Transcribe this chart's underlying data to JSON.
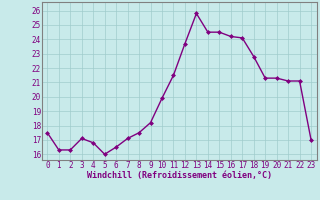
{
  "x": [
    0,
    1,
    2,
    3,
    4,
    5,
    6,
    7,
    8,
    9,
    10,
    11,
    12,
    13,
    14,
    15,
    16,
    17,
    18,
    19,
    20,
    21,
    22,
    23
  ],
  "y": [
    17.5,
    16.3,
    16.3,
    17.1,
    16.8,
    16.0,
    16.5,
    17.1,
    17.5,
    18.2,
    19.9,
    21.5,
    23.7,
    25.8,
    24.5,
    24.5,
    24.2,
    24.1,
    22.8,
    21.3,
    21.3,
    21.1,
    21.1,
    17.0
  ],
  "line_color": "#800080",
  "marker": "D",
  "markersize": 2.0,
  "linewidth": 1.0,
  "bg_color": "#c8eaea",
  "grid_color": "#a0cccc",
  "xlabel": "Windchill (Refroidissement éolien,°C)",
  "xlabel_fontsize": 6.0,
  "xlabel_color": "#800080",
  "xtick_labels": [
    "0",
    "1",
    "2",
    "3",
    "4",
    "5",
    "6",
    "7",
    "8",
    "9",
    "10",
    "11",
    "12",
    "13",
    "14",
    "15",
    "16",
    "17",
    "18",
    "19",
    "20",
    "21",
    "22",
    "23"
  ],
  "ytick_labels": [
    "16",
    "17",
    "18",
    "19",
    "20",
    "21",
    "22",
    "23",
    "24",
    "25",
    "26"
  ],
  "ylim": [
    15.6,
    26.6
  ],
  "xlim": [
    -0.5,
    23.5
  ],
  "tick_color": "#800080",
  "tick_fontsize": 5.5,
  "spine_color": "#808080"
}
